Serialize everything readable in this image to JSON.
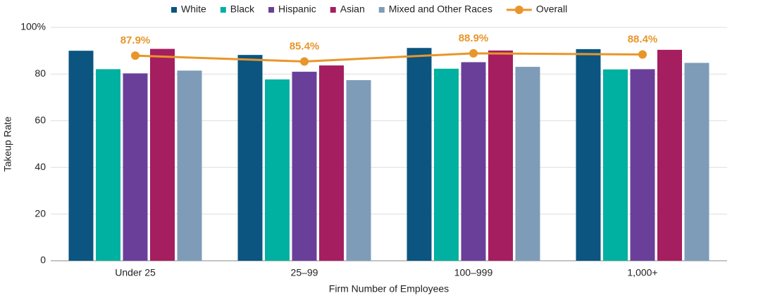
{
  "chart_data": {
    "type": "bar",
    "categories": [
      "Under 25",
      "25–99",
      "100–999",
      "1,000+"
    ],
    "series": [
      {
        "name": "White",
        "color": "#0b5580",
        "values": [
          90,
          88.2,
          91.2,
          90.7
        ]
      },
      {
        "name": "Black",
        "color": "#00b0a0",
        "values": [
          82.1,
          77.7,
          82.3,
          82
        ]
      },
      {
        "name": "Hispanic",
        "color": "#6a3f99",
        "values": [
          80.3,
          81,
          85.1,
          82.1
        ]
      },
      {
        "name": "Asian",
        "color": "#a51e5f",
        "values": [
          90.8,
          83.7,
          90.1,
          90.4
        ]
      },
      {
        "name": "Mixed and Other Races",
        "color": "#7e9cb8",
        "values": [
          81.5,
          77.4,
          83.1,
          84.8
        ]
      },
      {
        "name": "Overall",
        "type": "line",
        "color": "#e8962a",
        "values": [
          87.9,
          85.4,
          88.9,
          88.4
        ],
        "value_labels": [
          "87.9%",
          "85.4%",
          "88.9%",
          "88.4%"
        ]
      }
    ],
    "x_label": "Firm Number of Employees",
    "y_label": "Takeup Rate",
    "ylim": [
      0,
      100
    ],
    "yticks": [
      0,
      20,
      40,
      60,
      80,
      {
        "value": 100,
        "label": "100%"
      }
    ],
    "grid": true
  }
}
